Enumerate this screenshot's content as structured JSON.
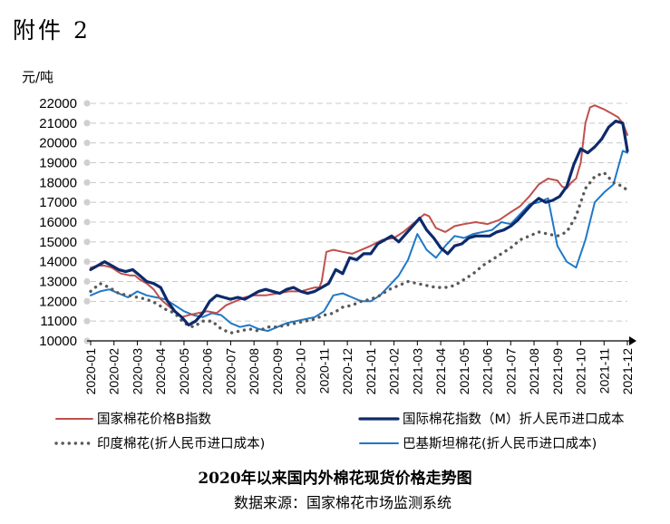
{
  "document_label": "附件 2",
  "chart_data": {
    "type": "line",
    "title": "2020年以来国内外棉花现货价格走势图",
    "source": "数据来源：国家棉花市场监测系统",
    "ylabel": "元/吨",
    "ylim": [
      10000,
      22000
    ],
    "ytick_step": 1000,
    "grid": true,
    "legend_position": "bottom",
    "categories": [
      "2020-01",
      "2020-02",
      "2020-03",
      "2020-04",
      "2020-05",
      "2020-06",
      "2020-07",
      "2020-08",
      "2020-09",
      "2020-10",
      "2020-11",
      "2020-12",
      "2021-01",
      "2021-02",
      "2021-03",
      "2021-04",
      "2021-05",
      "2021-06",
      "2021-07",
      "2021-08",
      "2021-09",
      "2021-10",
      "2021-11",
      "2021-12"
    ],
    "series": [
      {
        "name": "国家棉花价格B指数",
        "color": "#c0504d",
        "style": "solid",
        "x": [
          0,
          0.3,
          0.6,
          0.9,
          1.3,
          1.7,
          1.9,
          2.1,
          2.4,
          2.7,
          3.0,
          3.3,
          3.6,
          3.9,
          4.2,
          4.6,
          5.0,
          5.4,
          5.8,
          6.2,
          6.6,
          7.0,
          7.5,
          8.0,
          8.5,
          9.0,
          9.3,
          9.6,
          9.8,
          9.9,
          10.1,
          10.4,
          10.8,
          11.2,
          11.6,
          12.0,
          12.5,
          13.0,
          13.4,
          13.8,
          14.1,
          14.3,
          14.5,
          14.8,
          15.2,
          15.6,
          16.0,
          16.5,
          17.0,
          17.5,
          18.0,
          18.4,
          18.8,
          19.2,
          19.6,
          20.0,
          20.2,
          20.4,
          20.6,
          20.8,
          21.0,
          21.2,
          21.4,
          21.6,
          21.8,
          22.0,
          22.3,
          22.6,
          22.8,
          23.0
        ],
        "values": [
          13700,
          13800,
          13800,
          13700,
          13400,
          13300,
          13300,
          13100,
          12900,
          12600,
          12100,
          11800,
          11500,
          11200,
          11300,
          11400,
          11500,
          11400,
          11800,
          12000,
          12200,
          12300,
          12300,
          12400,
          12500,
          12500,
          12600,
          12700,
          12700,
          13000,
          14500,
          14600,
          14500,
          14400,
          14600,
          14800,
          15100,
          15200,
          15500,
          15900,
          16200,
          16400,
          16300,
          15700,
          15500,
          15800,
          15900,
          16000,
          15900,
          16100,
          16500,
          16800,
          17300,
          17900,
          18200,
          18100,
          17800,
          17700,
          18000,
          18200,
          19000,
          21000,
          21800,
          21900,
          21800,
          21700,
          21500,
          21300,
          21000,
          20400
        ]
      },
      {
        "name": "国际棉花指数（M）折人民币进口成本",
        "color": "#0d2a6b",
        "style": "solid",
        "x": [
          0,
          0.3,
          0.6,
          0.9,
          1.2,
          1.5,
          1.8,
          2.1,
          2.4,
          2.7,
          3.0,
          3.3,
          3.6,
          3.9,
          4.2,
          4.5,
          4.8,
          5.1,
          5.4,
          5.7,
          6.0,
          6.3,
          6.6,
          6.9,
          7.2,
          7.5,
          7.8,
          8.1,
          8.4,
          8.7,
          9.0,
          9.3,
          9.6,
          9.9,
          10.2,
          10.5,
          10.8,
          11.1,
          11.4,
          11.7,
          12.0,
          12.3,
          12.6,
          12.9,
          13.2,
          13.5,
          13.8,
          14.1,
          14.4,
          14.7,
          15.0,
          15.3,
          15.6,
          15.9,
          16.2,
          16.5,
          16.8,
          17.1,
          17.4,
          17.7,
          18.0,
          18.3,
          18.6,
          18.9,
          19.2,
          19.5,
          19.8,
          20.1,
          20.4,
          20.7,
          21.0,
          21.3,
          21.6,
          21.9,
          22.2,
          22.5,
          22.8,
          23.0
        ],
        "values": [
          13600,
          13800,
          14000,
          13800,
          13600,
          13500,
          13600,
          13300,
          13000,
          12900,
          12700,
          12000,
          11500,
          11200,
          10800,
          11000,
          11400,
          12000,
          12300,
          12200,
          12100,
          12200,
          12100,
          12300,
          12500,
          12600,
          12500,
          12400,
          12600,
          12700,
          12500,
          12400,
          12500,
          12700,
          12900,
          13600,
          13400,
          14200,
          14100,
          14400,
          14400,
          14900,
          15100,
          15300,
          15000,
          15400,
          15800,
          16200,
          15600,
          15200,
          14700,
          14400,
          14800,
          14900,
          15200,
          15300,
          15300,
          15300,
          15500,
          15600,
          15800,
          16100,
          16500,
          16900,
          17200,
          17000,
          17100,
          17300,
          17800,
          18900,
          19700,
          19500,
          19800,
          20200,
          20800,
          21100,
          21000,
          19600
        ]
      },
      {
        "name": "印度棉花(折人民币进口成本)",
        "color": "#595959",
        "style": "dotted",
        "x": [
          0,
          0.4,
          0.8,
          1.2,
          1.6,
          2.0,
          2.4,
          2.8,
          3.2,
          3.6,
          4.0,
          4.4,
          4.8,
          5.2,
          5.6,
          6.0,
          6.4,
          6.8,
          7.2,
          7.6,
          8.0,
          8.4,
          8.8,
          9.2,
          9.6,
          10.0,
          10.4,
          10.8,
          11.2,
          11.6,
          12.0,
          12.4,
          12.8,
          13.2,
          13.6,
          14.0,
          14.4,
          14.8,
          15.2,
          15.6,
          16.0,
          16.4,
          16.8,
          17.2,
          17.6,
          18.0,
          18.4,
          18.8,
          19.2,
          19.6,
          20.0,
          20.4,
          20.8,
          21.2,
          21.6,
          22.0,
          22.4,
          22.8,
          23.0
        ],
        "values": [
          12500,
          12900,
          12700,
          12400,
          12300,
          12200,
          12100,
          11900,
          11600,
          11400,
          10900,
          10700,
          11000,
          11000,
          10600,
          10400,
          10500,
          10600,
          10500,
          10700,
          10700,
          10800,
          10900,
          11000,
          11100,
          11300,
          11400,
          11700,
          11800,
          12000,
          12100,
          12300,
          12600,
          12800,
          13000,
          12900,
          12800,
          12700,
          12700,
          12800,
          13100,
          13400,
          13800,
          14100,
          14400,
          14700,
          15100,
          15300,
          15500,
          15400,
          15300,
          15500,
          16300,
          17700,
          18300,
          18500,
          18000,
          17800,
          17600
        ]
      },
      {
        "name": "巴基斯坦棉花(折人民币进口成本)",
        "color": "#1f78c8",
        "style": "solid",
        "x": [
          0,
          0.4,
          0.8,
          1.2,
          1.6,
          2.0,
          2.4,
          2.8,
          3.2,
          3.6,
          4.0,
          4.4,
          4.8,
          5.2,
          5.6,
          6.0,
          6.4,
          6.8,
          7.2,
          7.6,
          8.0,
          8.4,
          8.8,
          9.2,
          9.6,
          10.0,
          10.4,
          10.8,
          11.2,
          11.6,
          12.0,
          12.4,
          12.8,
          13.2,
          13.6,
          14.0,
          14.4,
          14.8,
          15.2,
          15.6,
          16.0,
          16.4,
          16.8,
          17.2,
          17.6,
          18.0,
          18.4,
          18.8,
          19.2,
          19.6,
          20.0,
          20.4,
          20.8,
          21.2,
          21.6,
          22.0,
          22.4,
          22.8,
          23.0
        ],
        "values": [
          12300,
          12500,
          12600,
          12400,
          12200,
          12500,
          12300,
          12200,
          12100,
          11800,
          11500,
          11300,
          11200,
          11400,
          11300,
          10900,
          10700,
          10800,
          10600,
          10500,
          10700,
          10900,
          11000,
          11100,
          11200,
          11500,
          12300,
          12400,
          12200,
          12000,
          12000,
          12300,
          12800,
          13300,
          14100,
          15400,
          14600,
          14200,
          14800,
          15300,
          15200,
          15400,
          15500,
          15600,
          16000,
          15900,
          16400,
          16900,
          17000,
          17200,
          14800,
          14000,
          13700,
          15100,
          17000,
          17500,
          17900,
          19600,
          19500
        ]
      }
    ]
  }
}
